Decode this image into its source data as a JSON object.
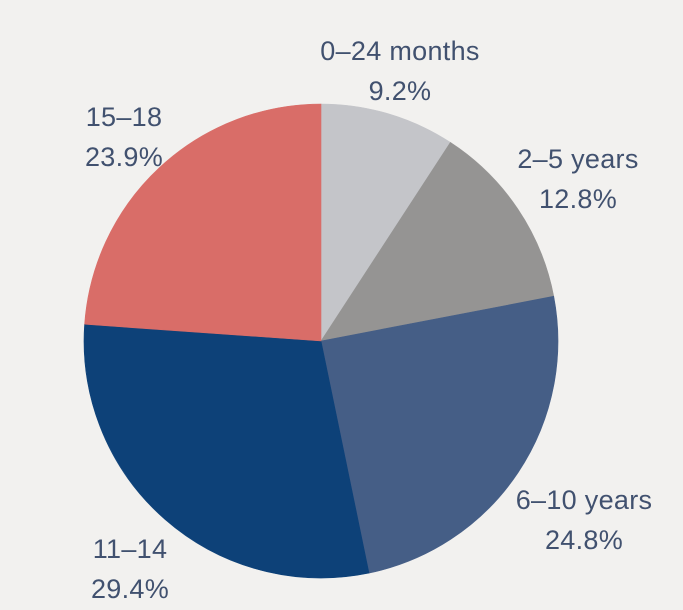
{
  "colors": {
    "background": "#f2f1ef",
    "label_text": "#41516f"
  },
  "chart_data": {
    "type": "pie",
    "title": "",
    "legend": "none",
    "start_angle_deg": 0,
    "direction": "clockwise",
    "slices": [
      {
        "label": "0–24 months",
        "pct_label": "9.2%",
        "value": 9.2,
        "color": "#c4c5c9"
      },
      {
        "label": "2–5 years",
        "pct_label": "12.8%",
        "value": 12.8,
        "color": "#959493"
      },
      {
        "label": "6–10 years",
        "pct_label": "24.8%",
        "value": 24.8,
        "color": "#455e86"
      },
      {
        "label": "11–14",
        "pct_label": "29.4%",
        "value": 29.4,
        "color": "#0d4178"
      },
      {
        "label": "15–18",
        "pct_label": "23.9%",
        "value": 23.9,
        "color": "#d96d68"
      }
    ]
  }
}
